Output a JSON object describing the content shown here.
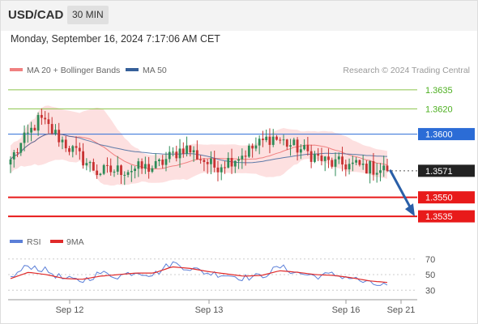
{
  "header": {
    "symbol": "USD/CAD",
    "timeframe": "30 MIN"
  },
  "timestamp": "Monday, September 16, 2024 7:17:06 AM CET",
  "colors": {
    "ma20": "#f08080",
    "ma50": "#36609a",
    "band_fill": "#fde0e0",
    "resistance_green": "#8bc34a",
    "resistance_green_text": "#4caf1f",
    "pivot_blue": "#2b6cd6",
    "support_red": "#e81a1a",
    "price_label_bg": "#222222",
    "arrow": "#2a5fa8",
    "candle_up": "#2e8b57",
    "candle_down": "#c83232",
    "rsi": "#5b7fd8",
    "rsi_ma": "#e02a2a"
  },
  "legend": {
    "ma20_label": "MA 20 + Bollinger Bands",
    "ma50_label": "MA 50",
    "copyright": "Research © 2024 Trading Central",
    "rsi_label": "RSI",
    "rsi_ma_label": "9MA"
  },
  "chart_data": [
    {
      "type": "candlestick",
      "y_range": [
        1.3528,
        1.3642
      ],
      "levels": [
        {
          "value": 1.3635,
          "label": "1.3635",
          "kind": "resistance"
        },
        {
          "value": 1.362,
          "label": "1.3620",
          "kind": "resistance"
        },
        {
          "value": 1.36,
          "label": "1.3600",
          "kind": "pivot"
        },
        {
          "value": 1.3571,
          "label": "1.3571",
          "kind": "last_price"
        },
        {
          "value": 1.355,
          "label": "1.3550",
          "kind": "support"
        },
        {
          "value": 1.3535,
          "label": "1.3535",
          "kind": "support"
        }
      ],
      "x_ticks": [
        "Sep 12",
        "Sep 13",
        "Sep 16",
        "Sep 21"
      ],
      "key_points": [
        1.358,
        1.3612,
        1.359,
        1.357,
        1.3572,
        1.3574,
        1.359,
        1.3574,
        1.3584,
        1.3598,
        1.3588,
        1.3577,
        1.3575,
        1.3571
      ],
      "projection": {
        "from": 1.3571,
        "to": 1.3535
      }
    },
    {
      "type": "line",
      "title": "RSI",
      "y_ticks": [
        70,
        50,
        30
      ],
      "rsi_key_points": [
        45,
        62,
        55,
        44,
        42,
        52,
        48,
        54,
        50,
        65,
        58,
        52,
        50,
        46,
        48,
        60,
        52,
        48,
        50,
        46,
        38,
        36
      ],
      "ma_key_points": [
        45,
        53,
        50,
        45,
        44,
        48,
        50,
        52,
        52,
        60,
        58,
        54,
        51,
        48,
        49,
        55,
        53,
        50,
        49,
        46,
        42,
        40
      ]
    }
  ]
}
